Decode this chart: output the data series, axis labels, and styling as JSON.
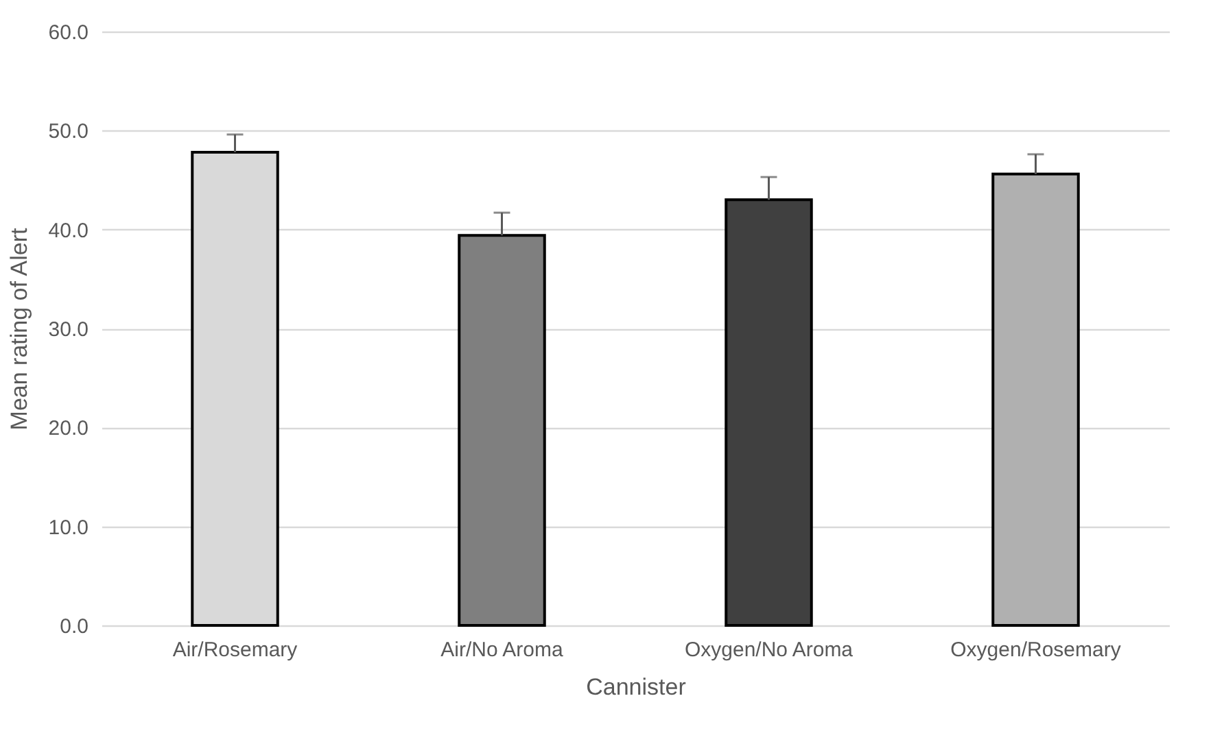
{
  "chart_data": {
    "type": "bar",
    "xlabel": "Cannister",
    "ylabel": "Mean rating of Alert",
    "categories": [
      "Air/Rosemary",
      "Air/No Aroma",
      "Oxygen/No Aroma",
      "Oxygen/Rosemary"
    ],
    "values": [
      47.8,
      39.4,
      43.0,
      45.6
    ],
    "colors": [
      "#d9d9d9",
      "#7f7f7f",
      "#404040",
      "#b0b0b0"
    ],
    "errors": [
      [
        47.8,
        49.6
      ],
      [
        39.4,
        41.7
      ],
      [
        43.0,
        45.3
      ],
      [
        45.6,
        47.6
      ]
    ],
    "ylim": [
      0,
      60
    ],
    "yticks": [
      {
        "value": 0,
        "label": "0.0"
      },
      {
        "value": 10,
        "label": "10.0"
      },
      {
        "value": 20,
        "label": "20.0"
      },
      {
        "value": 30,
        "label": "30.0"
      },
      {
        "value": 40,
        "label": "40.0"
      },
      {
        "value": 50,
        "label": "50.0"
      },
      {
        "value": 60,
        "label": "60.0"
      }
    ],
    "grid": "y"
  }
}
